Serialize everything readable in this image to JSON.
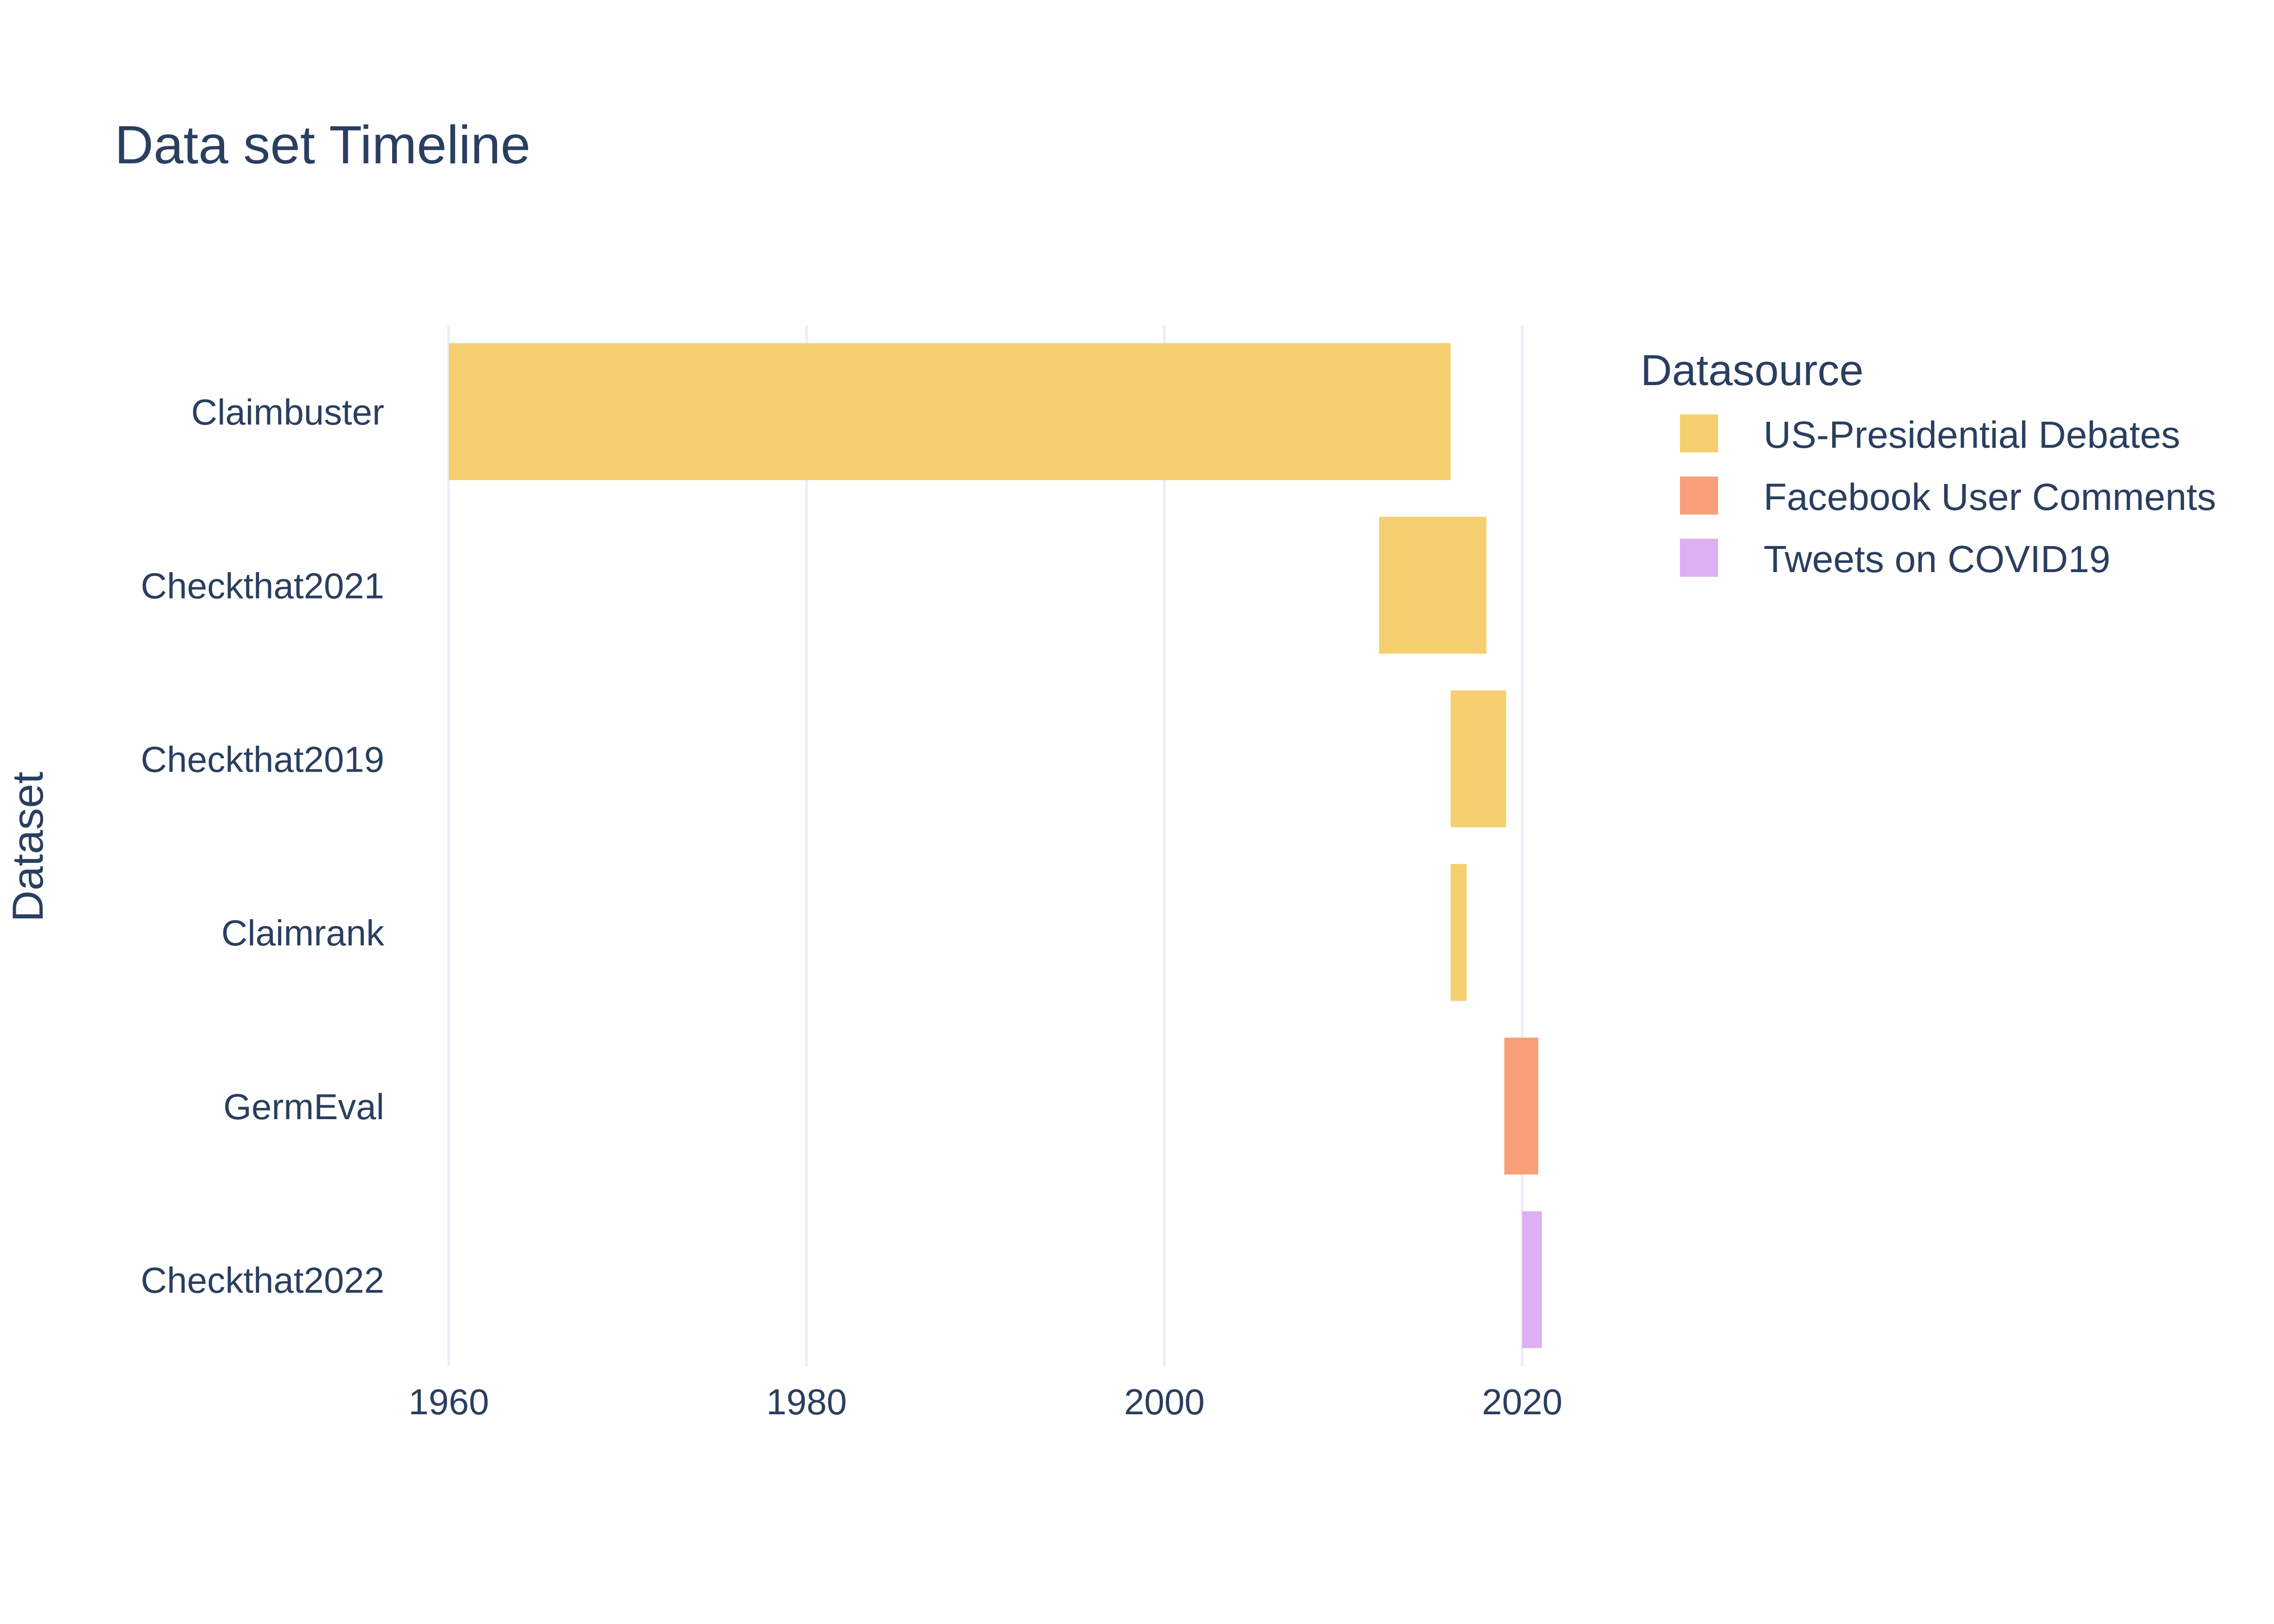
{
  "chart_data": {
    "type": "bar",
    "orientation": "horizontal",
    "title": "Data set Timeline",
    "ylabel": "Dataset",
    "xlabel": "",
    "x_ticks": [
      "1960",
      "1980",
      "2000",
      "2020"
    ],
    "xlim": [
      1960,
      2020
    ],
    "categories": [
      "Claimbuster",
      "Checkthat2021",
      "Checkthat2019",
      "Claimrank",
      "GermEval",
      "Checkthat2022"
    ],
    "tasks": [
      {
        "dataset": "Claimbuster",
        "start": 1960,
        "end": 2016,
        "source": "US-Presidential Debates"
      },
      {
        "dataset": "Checkthat2021",
        "start": 2012,
        "end": 2018,
        "source": "US-Presidential Debates"
      },
      {
        "dataset": "Checkthat2019",
        "start": 2016,
        "end": 2019.1,
        "source": "US-Presidential Debates"
      },
      {
        "dataset": "Claimrank",
        "start": 2016,
        "end": 2016.9,
        "source": "US-Presidential Debates"
      },
      {
        "dataset": "GermEval",
        "start": 2019,
        "end": 2020.9,
        "source": "Facebook User Comments"
      },
      {
        "dataset": "Checkthat2022",
        "start": 2020,
        "end": 2021.1,
        "source": "Tweets on COVID19"
      }
    ],
    "legend": {
      "title": "Datasource",
      "placement": "top-right",
      "items": [
        {
          "name": "US-Presidential Debates",
          "color": "#f5cf70"
        },
        {
          "name": "Facebook User Comments",
          "color": "#f99f79"
        },
        {
          "name": "Tweets on COVID19",
          "color": "#dcb0f2"
        }
      ]
    },
    "grid": true
  }
}
